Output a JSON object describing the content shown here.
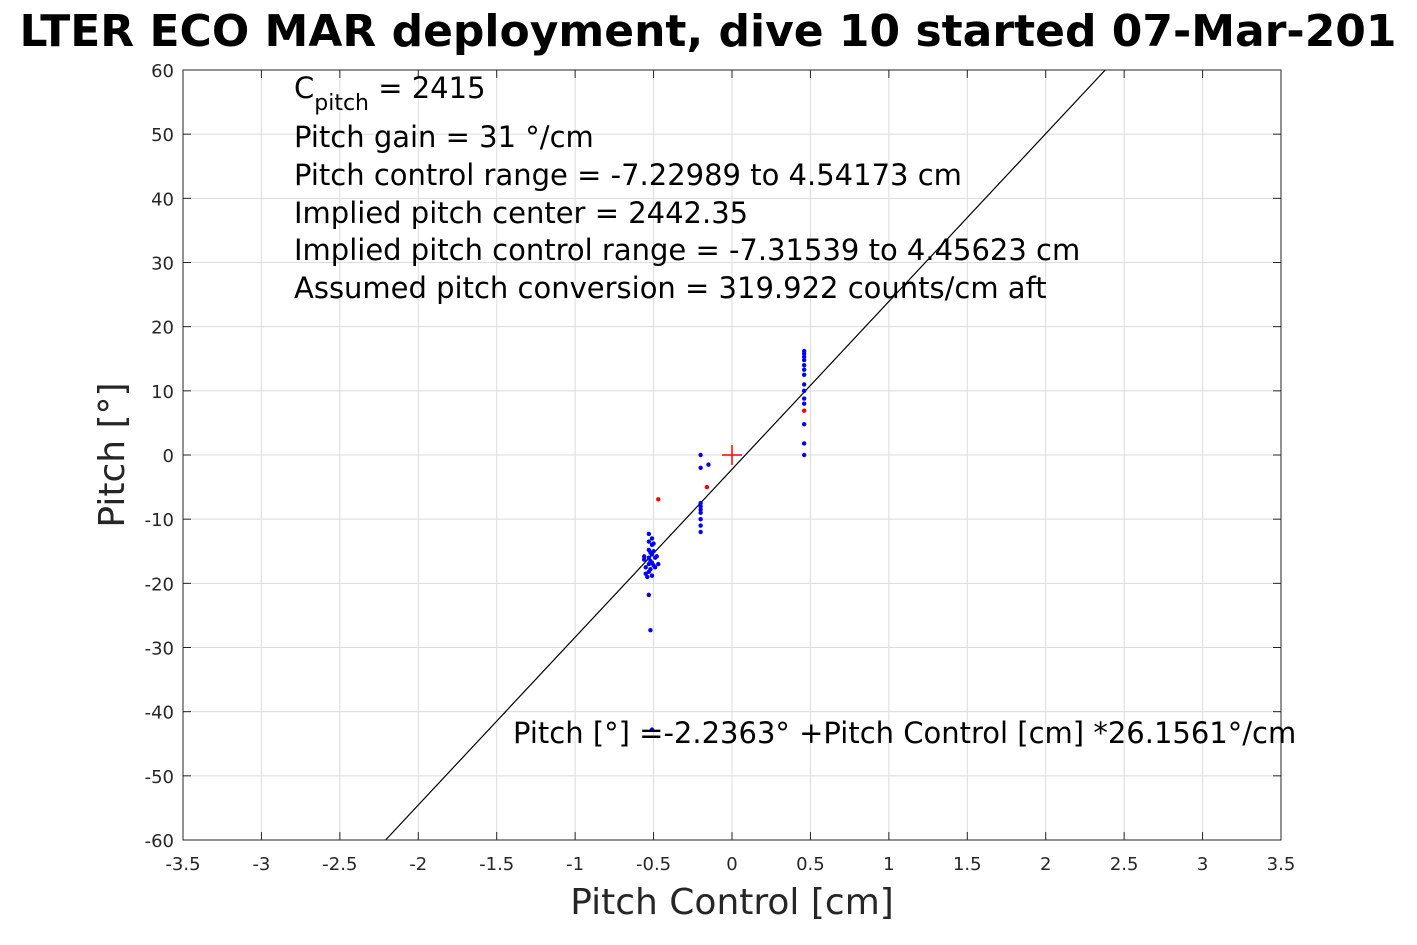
{
  "chart_data": {
    "type": "scatter",
    "title": "LTER ECO MAR deployment, dive 10 started 07-Mar-201",
    "xlabel": "Pitch Control [cm]",
    "ylabel": "Pitch [°]",
    "xlim": [
      -3.5,
      3.5
    ],
    "ylim": [
      -60,
      60
    ],
    "xticks": [
      "-3.5",
      "-3",
      "-2.5",
      "-2",
      "-1.5",
      "-1",
      "-0.5",
      "0",
      "0.5",
      "1",
      "1.5",
      "2",
      "2.5",
      "3",
      "3.5"
    ],
    "yticks": [
      "60",
      "50",
      "40",
      "30",
      "20",
      "10",
      "0",
      "-10",
      "-20",
      "-30",
      "-40",
      "-50",
      "-60"
    ],
    "grid": true,
    "annotations": {
      "c_pitch_symbol": "C",
      "c_pitch_subscript": "pitch",
      "c_pitch_value": " = 2415",
      "pitch_gain": "Pitch gain = 31 °/cm",
      "control_range": "Pitch control range = -7.22989 to 4.54173 cm",
      "pitch_center": "Implied pitch center = 2442.35",
      "implied_range": "Implied pitch control range = -7.31539 to 4.45623 cm",
      "conversion": "Assumed pitch conversion = 319.922 counts/cm aft",
      "fit_equation": "Pitch [°] =-2.2363° +Pitch Control [cm] *26.1561°/cm"
    },
    "fit_line": {
      "intercept": -2.2363,
      "slope": 26.1561,
      "color": "#000000"
    },
    "center_marker": {
      "x": 0,
      "y": 0,
      "color": "#ff0000"
    },
    "series": [
      {
        "color": "#0000ff",
        "points": [
          [
            -0.56,
            -15.8
          ],
          [
            -0.56,
            -16.3
          ],
          [
            -0.55,
            -17.5
          ],
          [
            -0.55,
            -18.5
          ],
          [
            -0.54,
            -19.0
          ],
          [
            -0.53,
            -12.3
          ],
          [
            -0.53,
            -13.5
          ],
          [
            -0.53,
            -14.8
          ],
          [
            -0.53,
            -16.0
          ],
          [
            -0.53,
            -17.0
          ],
          [
            -0.53,
            -18.2
          ],
          [
            -0.52,
            -15.2
          ],
          [
            -0.52,
            -16.5
          ],
          [
            -0.52,
            -17.8
          ],
          [
            -0.51,
            -13.0
          ],
          [
            -0.51,
            -14.0
          ],
          [
            -0.51,
            -15.5
          ],
          [
            -0.51,
            -16.8
          ],
          [
            -0.51,
            -18.8
          ],
          [
            -0.5,
            -15.0
          ],
          [
            -0.5,
            -17.2
          ],
          [
            -0.5,
            -13.8
          ],
          [
            -0.49,
            -16.0
          ],
          [
            -0.49,
            -17.5
          ],
          [
            -0.48,
            -15.8
          ],
          [
            -0.47,
            -17.0
          ],
          [
            -0.53,
            -21.8
          ],
          [
            -0.52,
            -27.3
          ],
          [
            -0.51,
            -42.8
          ],
          [
            -0.2,
            0.0
          ],
          [
            -0.2,
            -2.0
          ],
          [
            -0.15,
            -1.5
          ],
          [
            -0.2,
            -7.5
          ],
          [
            -0.2,
            -8.0
          ],
          [
            -0.2,
            -8.5
          ],
          [
            -0.2,
            -9.0
          ],
          [
            -0.2,
            -10.0
          ],
          [
            -0.2,
            -11.0
          ],
          [
            -0.2,
            -12.0
          ],
          [
            0.46,
            16.2
          ],
          [
            0.46,
            15.8
          ],
          [
            0.46,
            15.3
          ],
          [
            0.46,
            14.8
          ],
          [
            0.46,
            14.0
          ],
          [
            0.46,
            13.3
          ],
          [
            0.46,
            12.5
          ],
          [
            0.46,
            11.0
          ],
          [
            0.46,
            10.0
          ],
          [
            0.46,
            8.8
          ],
          [
            0.46,
            8.0
          ],
          [
            0.46,
            4.8
          ],
          [
            0.46,
            1.8
          ],
          [
            0.46,
            0.0
          ]
        ]
      },
      {
        "color": "#ff0000",
        "points": [
          [
            -0.47,
            -6.9
          ],
          [
            -0.16,
            -5.0
          ],
          [
            0.46,
            6.9
          ]
        ]
      }
    ]
  }
}
